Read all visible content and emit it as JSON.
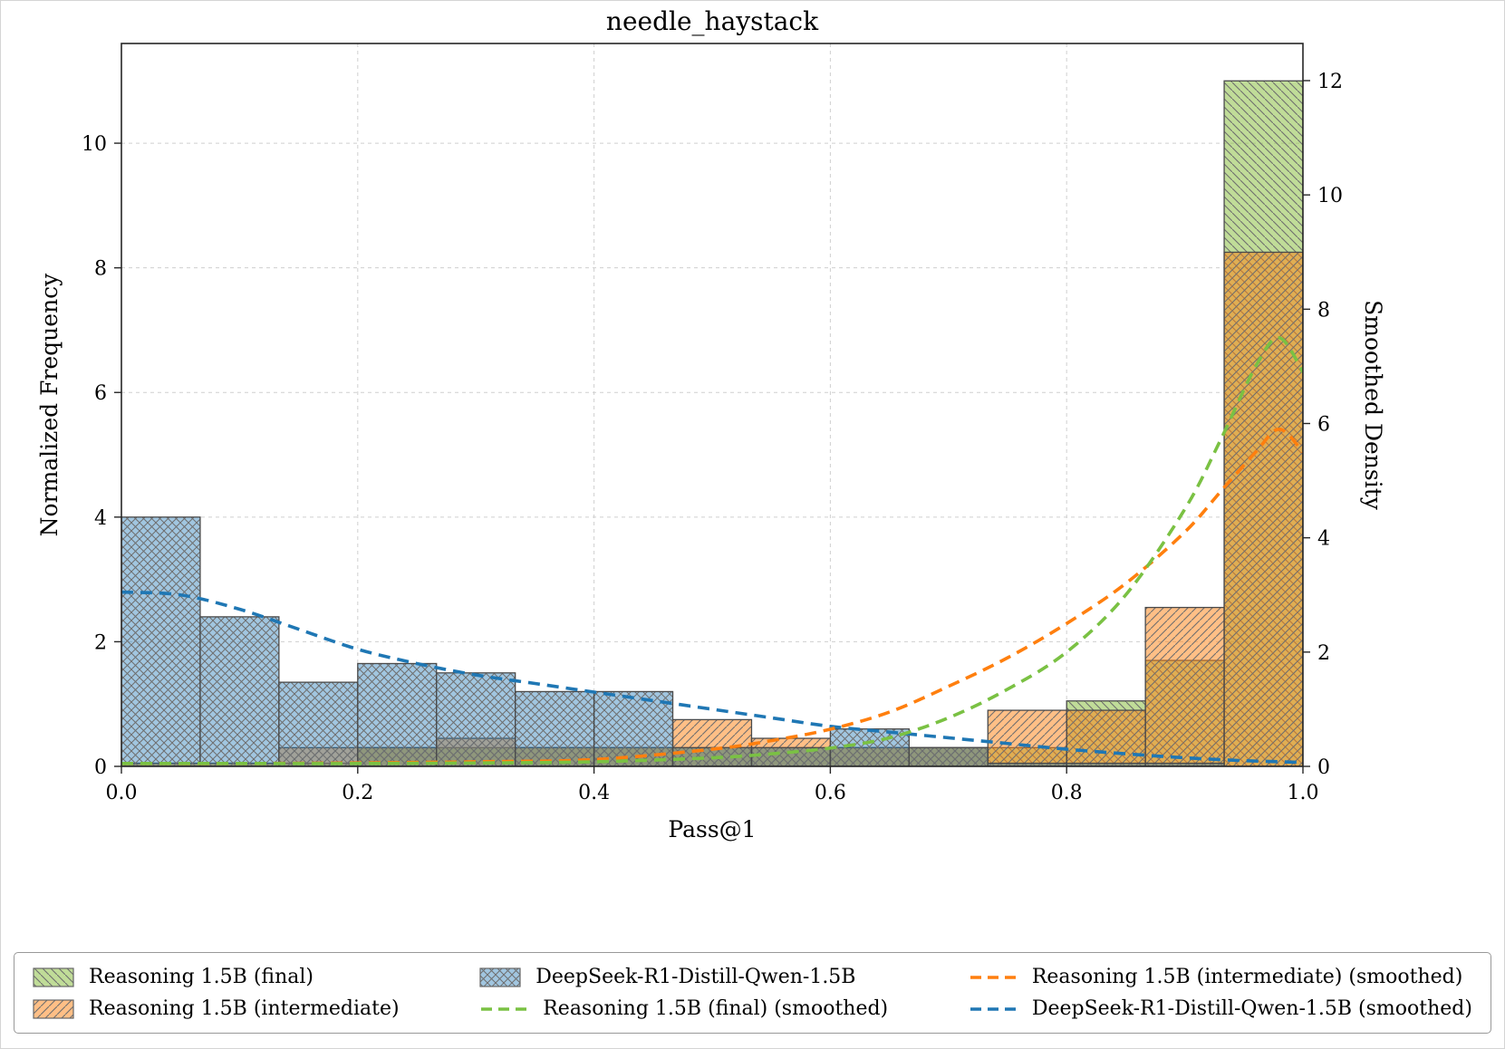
{
  "chart_data": {
    "type": "histogram",
    "title": "needle_haystack",
    "xlabel": "Pass@1",
    "ylabel_left": "Normalized Frequency",
    "ylabel_right": "Smoothed Density",
    "xlim": [
      0,
      1
    ],
    "xticks": [
      0,
      0.2,
      0.4,
      0.6,
      0.8,
      1.0
    ],
    "xtick_labels": [
      "0.0",
      "0.2",
      "0.4",
      "0.6",
      "0.8",
      "1.0"
    ],
    "ylim_left": [
      0,
      11.6
    ],
    "yticks_left": [
      0,
      2,
      4,
      6,
      8,
      10
    ],
    "ylim_right": [
      0,
      12.65
    ],
    "yticks_right": [
      0,
      2,
      4,
      6,
      8,
      10,
      12
    ],
    "grid": true,
    "series_styles": {
      "final": {
        "fill": "rgba(130,185,50,0.5)",
        "line": "#7ac143",
        "hatch": "backslash"
      },
      "intermediate": {
        "fill": "rgba(255,127,14,0.5)",
        "line": "#ff7f0e",
        "hatch": "slash"
      },
      "deepseek": {
        "fill": "rgba(31,119,180,0.42)",
        "line": "#1f77b4",
        "hatch": "cross"
      }
    },
    "histogram": {
      "bin_start": 0,
      "bin_width": 0.0666667,
      "series": [
        {
          "key": "final",
          "name": "Reasoning 1.5B (final)",
          "values": [
            0.05,
            0.05,
            0.05,
            0.3,
            0.3,
            0.3,
            0.3,
            0.3,
            0.3,
            0.3,
            0.3,
            0.3,
            1.05,
            1.7,
            11.0
          ]
        },
        {
          "key": "intermediate",
          "name": "Reasoning 1.5B (intermediate)",
          "values": [
            0.05,
            0.05,
            0.3,
            0.3,
            0.45,
            0.3,
            0.3,
            0.75,
            0.45,
            0.3,
            0.3,
            0.9,
            0.9,
            2.55,
            8.25
          ]
        },
        {
          "key": "deepseek",
          "name": "DeepSeek-R1-Distill-Qwen-1.5B",
          "values": [
            4.0,
            2.4,
            1.35,
            1.65,
            1.5,
            1.2,
            1.2,
            0.3,
            0.3,
            0.6,
            0.3,
            0.05,
            0.05,
            0.05,
            0.0
          ]
        }
      ]
    },
    "curves": [
      {
        "key": "deepseek",
        "name": "DeepSeek-R1-Distill-Qwen-1.5B (smoothed)",
        "x": [
          0,
          0.05,
          0.1,
          0.15,
          0.2,
          0.25,
          0.3,
          0.35,
          0.4,
          0.45,
          0.5,
          0.55,
          0.6,
          0.65,
          0.7,
          0.75,
          0.8,
          0.85,
          0.9,
          0.95,
          1.0
        ],
        "y": [
          3.05,
          3.0,
          2.75,
          2.4,
          2.05,
          1.8,
          1.6,
          1.45,
          1.3,
          1.15,
          1.0,
          0.85,
          0.7,
          0.6,
          0.5,
          0.4,
          0.3,
          0.22,
          0.15,
          0.1,
          0.07
        ]
      },
      {
        "key": "intermediate",
        "name": "Reasoning 1.5B (intermediate) (smoothed)",
        "x": [
          0,
          0.1,
          0.2,
          0.3,
          0.4,
          0.5,
          0.55,
          0.6,
          0.65,
          0.7,
          0.75,
          0.8,
          0.85,
          0.9,
          0.93,
          0.96,
          0.98,
          1.0
        ],
        "y": [
          0.05,
          0.05,
          0.06,
          0.08,
          0.12,
          0.3,
          0.45,
          0.65,
          0.95,
          1.4,
          1.9,
          2.5,
          3.2,
          4.1,
          4.8,
          5.5,
          5.9,
          5.5
        ]
      },
      {
        "key": "final",
        "name": "Reasoning 1.5B (final) (smoothed)",
        "x": [
          0,
          0.1,
          0.2,
          0.3,
          0.4,
          0.5,
          0.55,
          0.6,
          0.65,
          0.7,
          0.75,
          0.8,
          0.85,
          0.9,
          0.93,
          0.96,
          0.98,
          1.0
        ],
        "y": [
          0.05,
          0.05,
          0.05,
          0.06,
          0.08,
          0.15,
          0.22,
          0.32,
          0.5,
          0.85,
          1.35,
          2.0,
          3.0,
          4.5,
          5.7,
          7.0,
          7.5,
          6.9
        ]
      }
    ],
    "legend": {
      "items": [
        {
          "label": "Reasoning 1.5B (final)",
          "swatch": "patch",
          "series": "final"
        },
        {
          "label": "Reasoning 1.5B (intermediate)",
          "swatch": "patch",
          "series": "intermediate"
        },
        {
          "label": "DeepSeek-R1-Distill-Qwen-1.5B",
          "swatch": "patch",
          "series": "deepseek"
        },
        {
          "label": "Reasoning 1.5B (final) (smoothed)",
          "swatch": "line",
          "series": "final"
        },
        {
          "label": "Reasoning 1.5B (intermediate) (smoothed)",
          "swatch": "line",
          "series": "intermediate"
        },
        {
          "label": "DeepSeek-R1-Distill-Qwen-1.5B (smoothed)",
          "swatch": "line",
          "series": "deepseek"
        }
      ]
    }
  }
}
